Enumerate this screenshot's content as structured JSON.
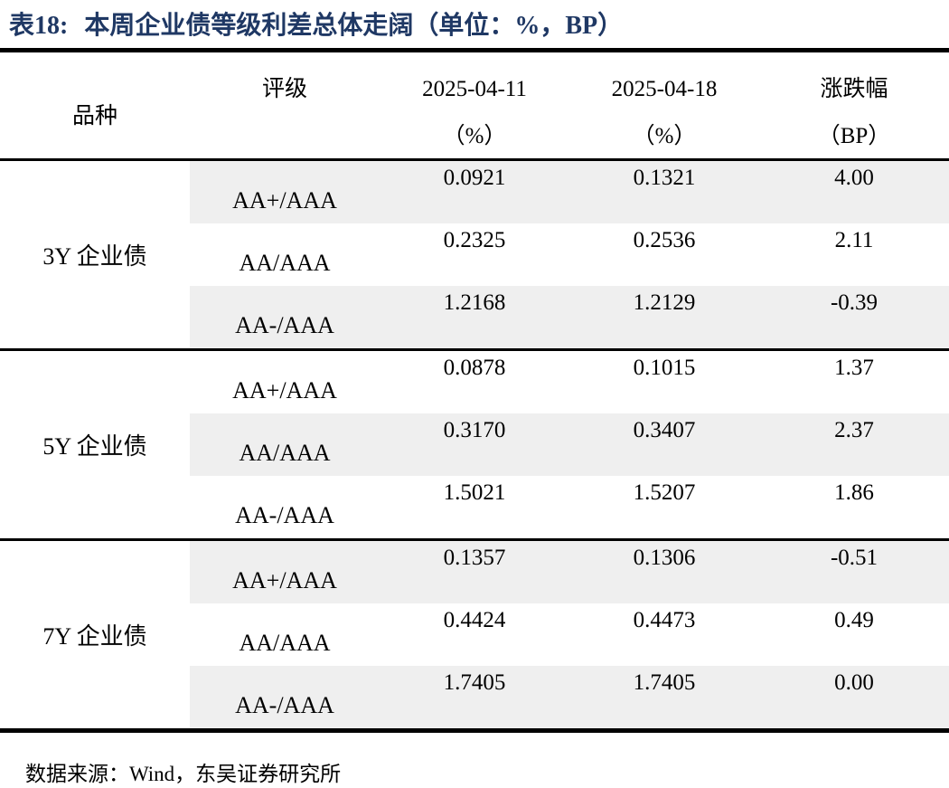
{
  "title": {
    "label": "表18:",
    "text": "本周企业债等级利差总体走阔（单位：%，BP）"
  },
  "colors": {
    "title_navy": "#1F3864",
    "row_shade": "#EFEFEF",
    "rule_black": "#000000"
  },
  "header": {
    "variety": "品种",
    "rating": "评级",
    "date1": {
      "line1": "2025-04-11",
      "line2": "（%）"
    },
    "date2": {
      "line1": "2025-04-18",
      "line2": "（%）"
    },
    "change": {
      "line1": "涨跌幅",
      "line2": "（BP）"
    }
  },
  "groups": [
    {
      "variety": "3Y 企业债",
      "rows": [
        {
          "rating": "AA+/AAA",
          "v1": "0.0921",
          "v2": "0.1321",
          "chg": "4.00"
        },
        {
          "rating": "AA/AAA",
          "v1": "0.2325",
          "v2": "0.2536",
          "chg": "2.11"
        },
        {
          "rating": "AA-/AAA",
          "v1": "1.2168",
          "v2": "1.2129",
          "chg": "-0.39"
        }
      ]
    },
    {
      "variety": "5Y 企业债",
      "rows": [
        {
          "rating": "AA+/AAA",
          "v1": "0.0878",
          "v2": "0.1015",
          "chg": "1.37"
        },
        {
          "rating": "AA/AAA",
          "v1": "0.3170",
          "v2": "0.3407",
          "chg": "2.37"
        },
        {
          "rating": "AA-/AAA",
          "v1": "1.5021",
          "v2": "1.5207",
          "chg": "1.86"
        }
      ]
    },
    {
      "variety": "7Y 企业债",
      "rows": [
        {
          "rating": "AA+/AAA",
          "v1": "0.1357",
          "v2": "0.1306",
          "chg": "-0.51"
        },
        {
          "rating": "AA/AAA",
          "v1": "0.4424",
          "v2": "0.4473",
          "chg": "0.49"
        },
        {
          "rating": "AA-/AAA",
          "v1": "1.7405",
          "v2": "1.7405",
          "chg": "0.00"
        }
      ]
    }
  ],
  "footer": {
    "source": "数据来源：Wind，东吴证券研究所"
  }
}
